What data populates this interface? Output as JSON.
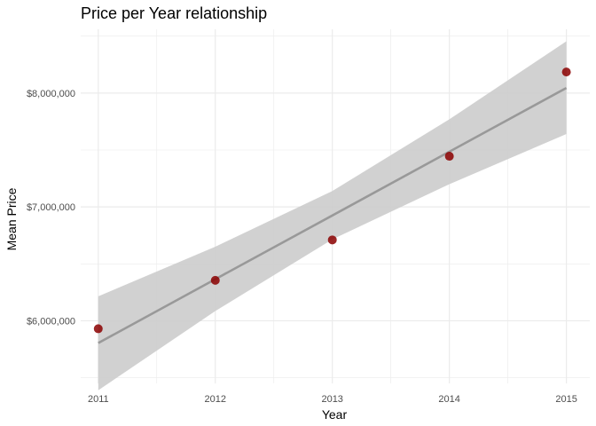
{
  "chart_data": {
    "type": "scatter",
    "title": "Price per Year relationship",
    "xlabel": "Year",
    "ylabel": "Mean Price",
    "x": [
      2011,
      2012,
      2013,
      2014,
      2015
    ],
    "y": [
      5930000,
      6355000,
      6710000,
      7445000,
      8185000
    ],
    "xlim": [
      2010.85,
      2015.2
    ],
    "ylim": [
      5450000,
      8560000
    ],
    "x_ticks": [
      2011,
      2012,
      2013,
      2014,
      2015
    ],
    "x_tick_labels": [
      "2011",
      "2012",
      "2013",
      "2014",
      "2015"
    ],
    "y_ticks": [
      6000000,
      7000000,
      8000000
    ],
    "y_tick_labels": [
      "$6,000,000",
      "$7,000,000",
      "$8,000,000"
    ],
    "grid": true,
    "legend": "none",
    "trend": {
      "method": "linear",
      "x": [
        2011,
        2012,
        2013,
        2014,
        2015
      ],
      "fit": [
        5805000,
        6365000,
        6925000,
        7485000,
        8045000
      ],
      "lower": [
        5390000,
        6085000,
        6715000,
        7200000,
        7640000
      ],
      "upper": [
        6215000,
        6650000,
        7140000,
        7770000,
        8455000
      ]
    },
    "colors": {
      "point": "#8b0000",
      "line": "#999999",
      "band": "#cccccc",
      "grid": "#ebebeb"
    }
  }
}
